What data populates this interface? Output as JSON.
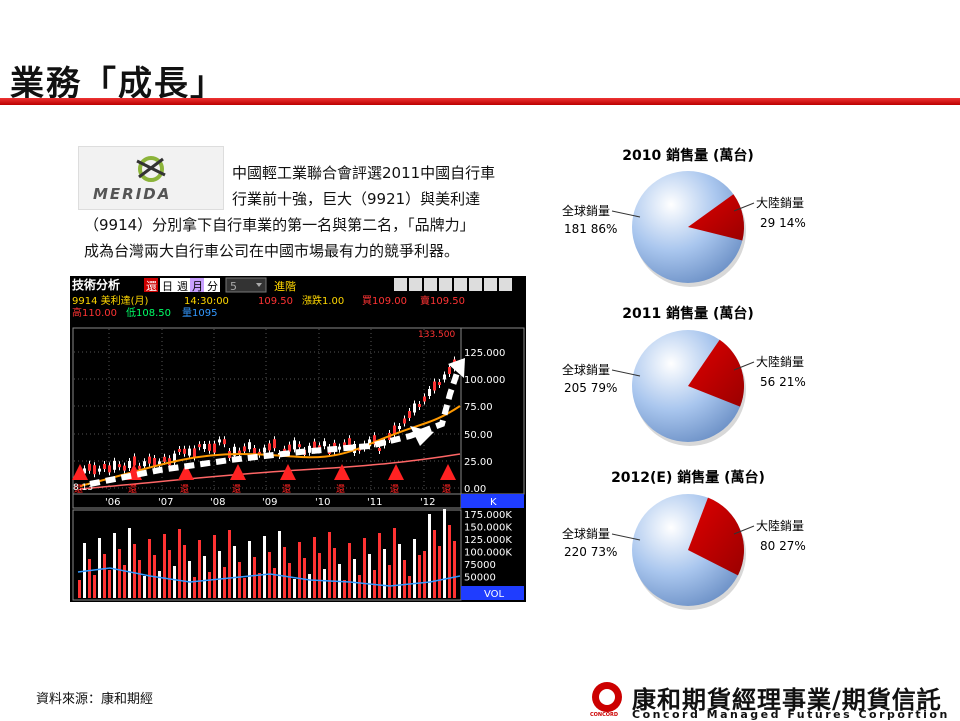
{
  "page": {
    "title": "業務「成長」",
    "source": "資料來源：康和期經"
  },
  "logo": {
    "text": "MERIDA"
  },
  "description": {
    "line1": "中國輕工業聯合會評選2011中國自行車",
    "line2": "行業前十強，巨大（9921）與美利達",
    "line3": "（9914）分別拿下自行車業的第一名與第二名，「品牌力」",
    "line4": "成為台灣兩大自行車公司在中國市場最有力的競爭利器。"
  },
  "stock_chart": {
    "toolbar": {
      "title": "技術分析",
      "btn_restore": "還",
      "btn_day": "日",
      "btn_week": "週",
      "btn_month": "月",
      "btn_minute": "分",
      "dropdown_value": "5",
      "btn_advanced": "進階"
    },
    "info": {
      "code_name": "9914  美利達(月)",
      "time": "14:30:00",
      "price": "109.50",
      "change": "漲跌1.00",
      "bid": "買109.00",
      "ask": "賣109.50",
      "high": "高110.00",
      "low": "低108.50",
      "volume": "量1095"
    },
    "max_label": "133.500",
    "price_ticks": [
      "125.000",
      "100.000",
      "75.00",
      "50.00",
      "25.00",
      "0.00"
    ],
    "year_ticks": [
      "'06",
      "'07",
      "'08",
      "'09",
      "'10",
      "'11",
      "'12"
    ],
    "k_label": "K",
    "vol_ticks": [
      "175.000K",
      "150.000K",
      "125.000K",
      "100.000K",
      "75000",
      "50000"
    ],
    "vol_label": "VOL",
    "bottom_left": "8.13",
    "marker_label": "還"
  },
  "chart_data": [
    {
      "type": "pie",
      "title": "2010 銷售量 (萬台)",
      "slices": [
        {
          "label": "全球銷量",
          "value": 181,
          "percent": "86%",
          "color": "#8fb4e3"
        },
        {
          "label": "大陸銷量",
          "value": 29,
          "percent": "14%",
          "color": "#c00000"
        }
      ]
    },
    {
      "type": "pie",
      "title": "2011 銷售量 (萬台)",
      "slices": [
        {
          "label": "全球銷量",
          "value": 205,
          "percent": "79%",
          "color": "#8fb4e3"
        },
        {
          "label": "大陸銷量",
          "value": 56,
          "percent": "21%",
          "color": "#c00000"
        }
      ]
    },
    {
      "type": "pie",
      "title": "2012(E) 銷售量 (萬台)",
      "slices": [
        {
          "label": "全球銷量",
          "value": 220,
          "percent": "73%",
          "color": "#8fb4e3"
        },
        {
          "label": "大陸銷量",
          "value": 80,
          "percent": "27%",
          "color": "#c00000"
        }
      ]
    }
  ],
  "company": {
    "name": "康和期貨經理事業/期貨信託",
    "english": "Concord Managed Futures Corportion",
    "abbr": "CONCORD"
  }
}
